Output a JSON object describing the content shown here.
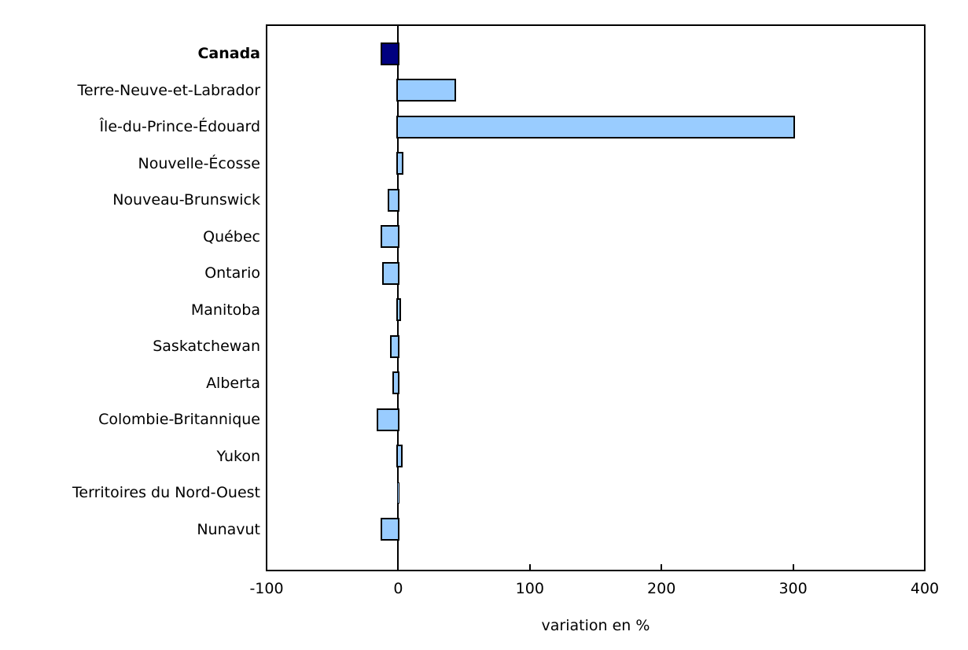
{
  "chart_data": {
    "type": "bar",
    "orientation": "horizontal",
    "title": "",
    "xlabel": "variation en %",
    "ylabel": "",
    "xlim": [
      -100,
      400
    ],
    "x_ticks": [
      -100,
      0,
      100,
      200,
      300,
      400
    ],
    "grid": false,
    "legend": "none",
    "highlight_category": "Canada",
    "categories": [
      "Canada",
      "Terre-Neuve-et-Labrador",
      "Île-du-Prince-Édouard",
      "Nouvelle-Écosse",
      "Nouveau-Brunswick",
      "Québec",
      "Ontario",
      "Manitoba",
      "Saskatchewan",
      "Alberta",
      "Colombie-Britannique",
      "Yukon",
      "Territoires du Nord-Ouest",
      "Nunavut"
    ],
    "values": [
      -12,
      43,
      300,
      3,
      -7,
      -12,
      -11,
      1,
      -5,
      -3,
      -15,
      2,
      0.2,
      -12
    ],
    "colors": {
      "bar_fill": "#99CCFF",
      "highlight_fill": "#000080",
      "bar_border": "#000000",
      "axis": "#000000",
      "background": "#FFFFFF",
      "text": "#000000"
    }
  }
}
